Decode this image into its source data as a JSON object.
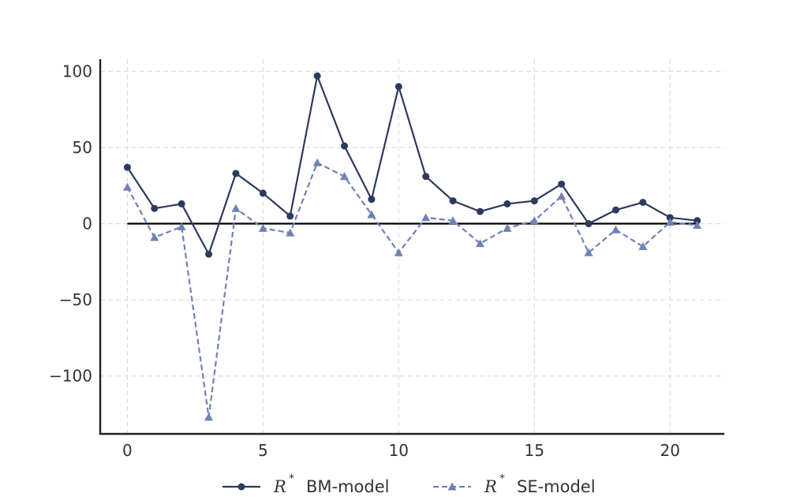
{
  "chart_data": {
    "type": "line",
    "title": "",
    "xlabel": "",
    "ylabel": "",
    "x": [
      0,
      1,
      2,
      3,
      4,
      5,
      6,
      7,
      8,
      9,
      10,
      11,
      12,
      13,
      14,
      15,
      16,
      17,
      18,
      19,
      20,
      21
    ],
    "xlim": [
      -1,
      22
    ],
    "ylim": [
      -138,
      108
    ],
    "xticks": [
      0,
      5,
      10,
      15,
      20
    ],
    "yticks": [
      -100,
      -50,
      0,
      50,
      100
    ],
    "xtick_labels": [
      "0",
      "5",
      "10",
      "15",
      "20"
    ],
    "ytick_labels": [
      "−100",
      "−50",
      "0",
      "50",
      "100"
    ],
    "grid": true,
    "zero_line": true,
    "legend_position": "bottom-center",
    "series": [
      {
        "symbol": "R",
        "superscript": "*",
        "label_suffix": "BM-model",
        "color": "#2b3a5e",
        "line_style": "solid",
        "marker": "circle",
        "values": [
          37,
          10,
          13,
          -20,
          33,
          20,
          5,
          97,
          51,
          16,
          90,
          31,
          15,
          8,
          13,
          15,
          26,
          0,
          9,
          14,
          4,
          2
        ]
      },
      {
        "symbol": "R",
        "superscript": "*",
        "label_suffix": "SE-model",
        "color": "#6f82b6",
        "line_style": "dashed",
        "marker": "triangle",
        "values": [
          24,
          -9,
          -2,
          -127,
          10,
          -3,
          -6,
          40,
          31,
          6,
          -19,
          4,
          2,
          -13,
          -3,
          2,
          18,
          -19,
          -4,
          -15,
          1,
          -1
        ]
      }
    ]
  }
}
